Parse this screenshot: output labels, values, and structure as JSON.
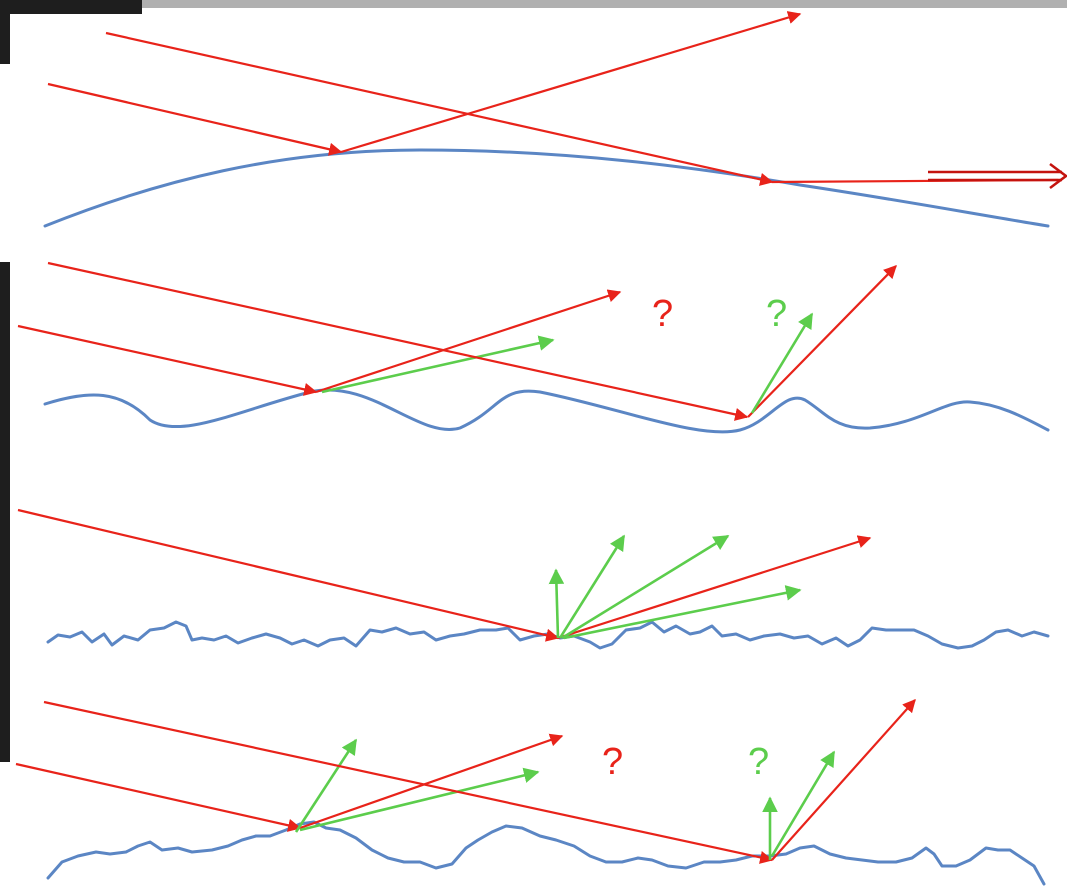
{
  "panels": [
    {
      "id": "smooth-curved",
      "labels": []
    },
    {
      "id": "wavy",
      "labels": [
        {
          "text": "?",
          "color": "#e8231a"
        },
        {
          "text": "?",
          "color": "#5ccd4c"
        }
      ]
    },
    {
      "id": "rough-fine",
      "labels": []
    },
    {
      "id": "rough-wavy",
      "labels": [
        {
          "text": "?",
          "color": "#e8231a"
        },
        {
          "text": "?",
          "color": "#5ccd4c"
        }
      ]
    }
  ],
  "colors": {
    "incident_reflected": "#e8231a",
    "scattered": "#5ccd4c",
    "surface": "#5b86c4"
  }
}
